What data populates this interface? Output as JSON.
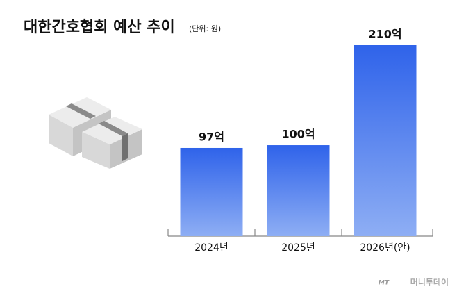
{
  "chart_data": {
    "type": "bar",
    "title": "대한간호협회 예산 추이",
    "subtitle": "(단위: 원)",
    "categories": [
      "2024년",
      "2025년",
      "2026년(안)"
    ],
    "values": [
      97,
      100,
      210
    ],
    "value_labels": [
      "97억",
      "100억",
      "210억"
    ],
    "color": "#2f63ea",
    "watermark_logo": "MT",
    "watermark": "머니투데이"
  }
}
